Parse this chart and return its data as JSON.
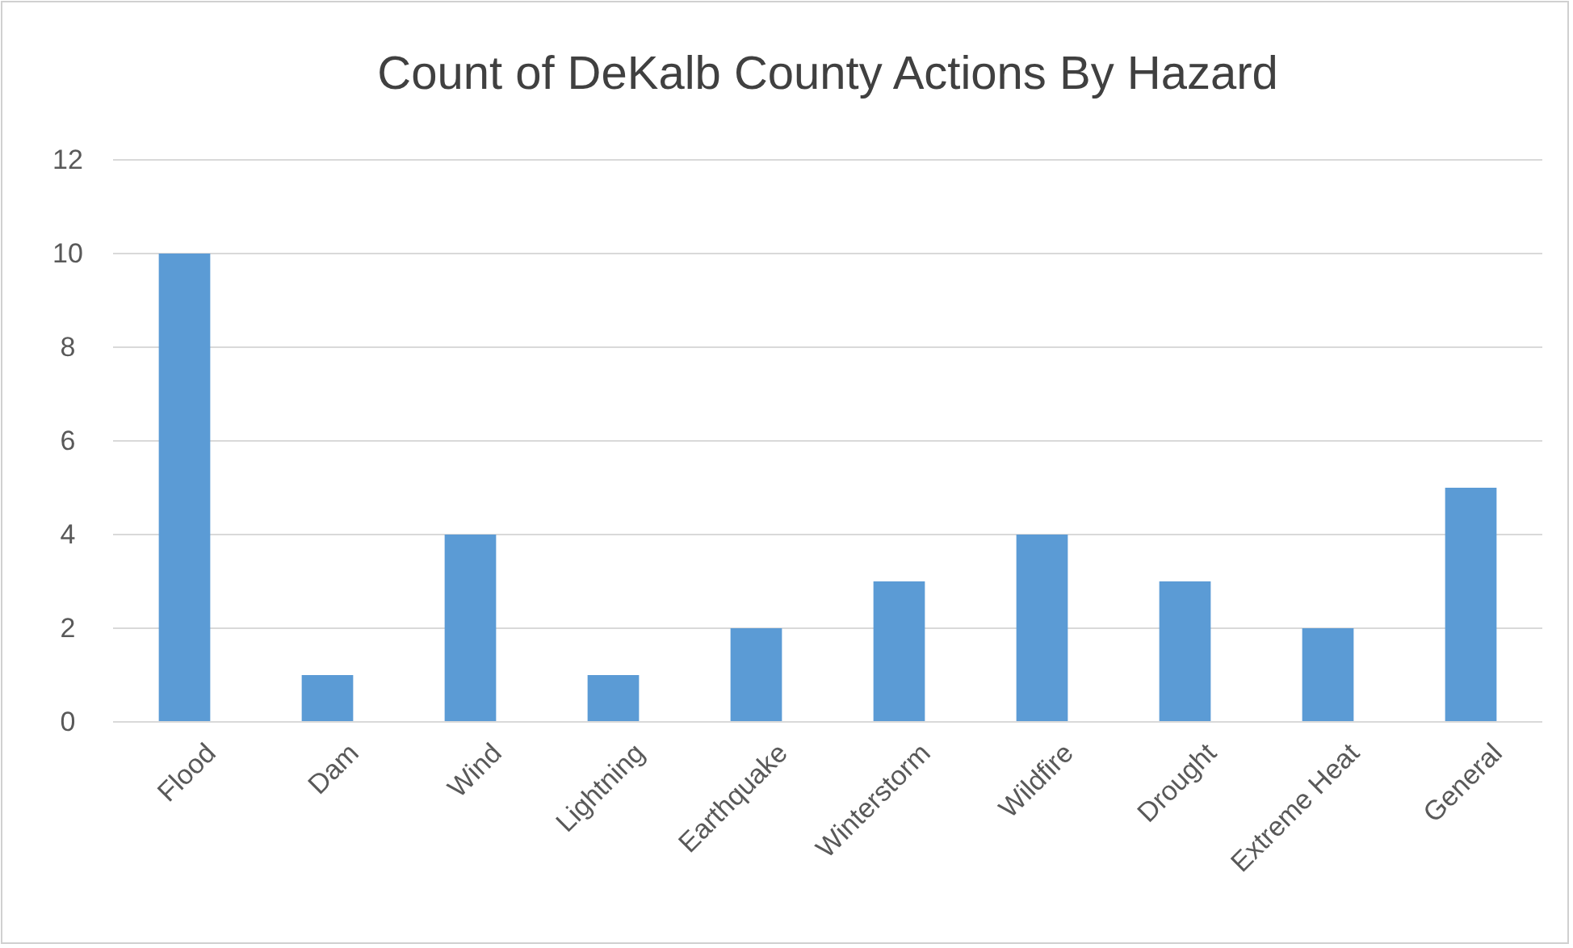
{
  "chart_data": {
    "type": "bar",
    "title": "Count of DeKalb County Actions By Hazard",
    "categories": [
      "Flood",
      "Dam",
      "Wind",
      "Lightning",
      "Earthquake",
      "Winterstorm",
      "Wildfire",
      "Drought",
      "Extreme Heat",
      "General"
    ],
    "values": [
      10,
      1,
      4,
      1,
      2,
      3,
      4,
      3,
      2,
      5
    ],
    "color": "#5b9bd5",
    "ylim": [
      0,
      12
    ],
    "yticks": [
      0,
      2,
      4,
      6,
      8,
      10,
      12
    ],
    "grid": "y"
  }
}
